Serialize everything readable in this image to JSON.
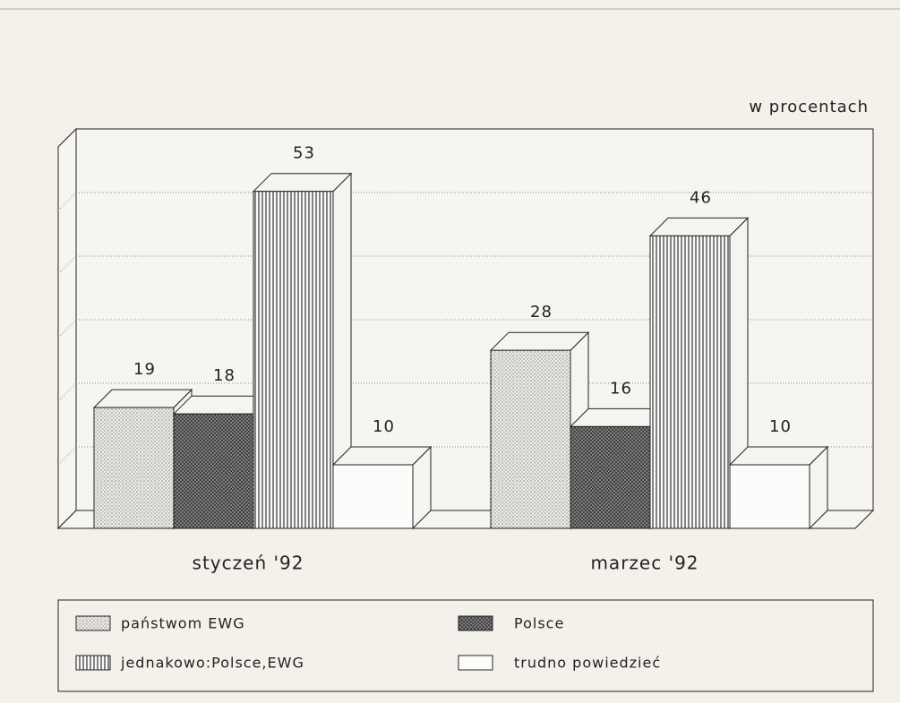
{
  "chart_data": {
    "type": "bar3d",
    "unit_label": "w procentach",
    "categories": [
      "styczeń '92",
      "marzec '92"
    ],
    "series": [
      {
        "name": "państwom EWG",
        "pattern": "dots",
        "values": [
          19,
          28
        ]
      },
      {
        "name": "Polsce",
        "pattern": "crosshatch",
        "values": [
          18,
          16
        ]
      },
      {
        "name": "jednakowo:Polsce,EWG",
        "pattern": "vertical",
        "values": [
          53,
          46
        ]
      },
      {
        "name": "trudno powiedzieć",
        "pattern": "none",
        "values": [
          10,
          10
        ]
      }
    ],
    "ylim": [
      0,
      60
    ],
    "yticks": [
      0,
      10,
      20,
      30,
      40,
      50,
      60
    ],
    "grid": true
  }
}
